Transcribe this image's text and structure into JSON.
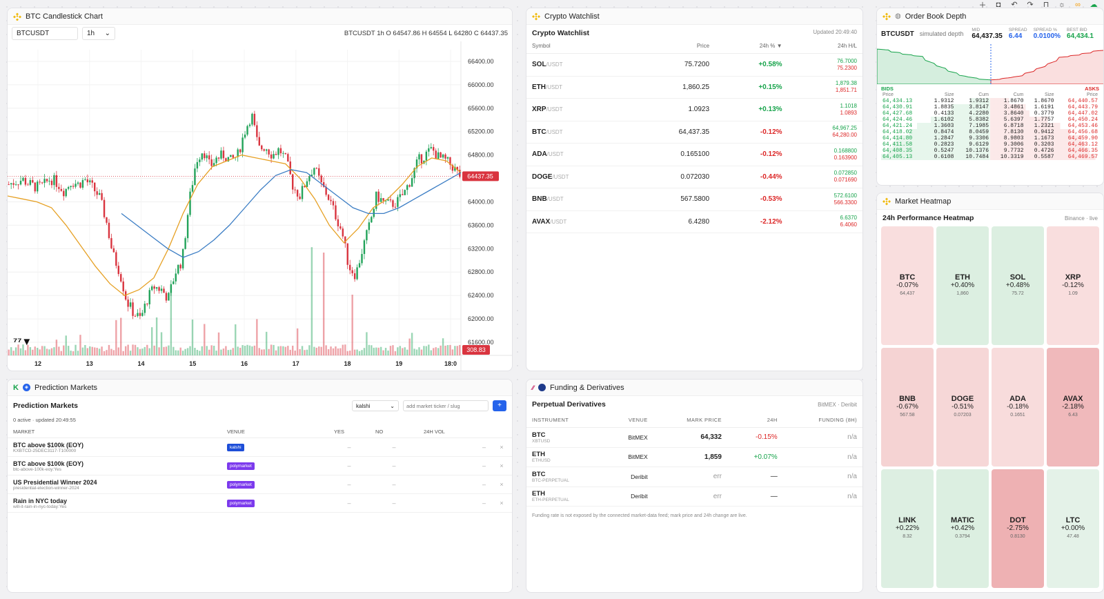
{
  "toolbar": {
    "icons": [
      "plus-icon",
      "camera-icon",
      "undo-icon",
      "redo-icon",
      "lock-icon",
      "sun-icon",
      "link-icon",
      "cloud-icon"
    ]
  },
  "candle": {
    "title": "BTC Candlestick Chart",
    "symbol": "BTCUSDT",
    "interval": "1h",
    "ohlc": "BTCUSDT 1h O 64547.86 H 64554 L 64280 C 64437.35",
    "last_price_label": "64437.35",
    "volume_label": "308.83",
    "chart_data": {
      "type": "candlestick",
      "y_ticks": [
        "66400.00",
        "66000.00",
        "65600.00",
        "65200.00",
        "64800.00",
        "64400.00",
        "64000.00",
        "63600.00",
        "63200.00",
        "62800.00",
        "62400.00",
        "62000.00",
        "61600.00"
      ],
      "ylim": [
        61600,
        66600
      ],
      "x_ticks": [
        "12",
        "13",
        "14",
        "15",
        "16",
        "17",
        "18",
        "19",
        "18:0"
      ],
      "last_price": 64437.35,
      "path_points": [
        64300,
        64350,
        64380,
        64300,
        64250,
        64280,
        64400,
        64320,
        64180,
        64350,
        64300,
        64380,
        64250,
        64100,
        63700,
        63100,
        62800,
        62300,
        62100,
        62000,
        62350,
        62550,
        62500,
        62350,
        62800,
        63000,
        64000,
        64700,
        64900,
        64600,
        64750,
        64800,
        64700,
        64800,
        65200,
        65500,
        64900,
        64950,
        64800,
        64900,
        64700,
        64250,
        64100,
        64400,
        64600,
        64300,
        64100,
        63800,
        63500,
        62900,
        62750,
        63200,
        63600,
        64100,
        64000,
        63950,
        64000,
        64150,
        64400,
        64700,
        64800,
        64900,
        64750,
        64700,
        64600,
        64450
      ],
      "ma_fast": [
        64100,
        64050,
        64000,
        63900,
        63600,
        63250,
        62900,
        62600,
        62400,
        62500,
        62700,
        63200,
        63800,
        64300,
        64600,
        64700,
        64800,
        64750,
        64700,
        64650,
        64400,
        64050,
        63600,
        63300,
        63550,
        63900,
        64050,
        64300,
        64600,
        64750,
        64700,
        64500
      ],
      "ma_slow": [
        63800,
        63600,
        63400,
        63200,
        63050,
        63150,
        63350,
        63600,
        63900,
        64200,
        64450,
        64550,
        64500,
        64300,
        64100,
        63900,
        63800,
        63800,
        63900,
        64050,
        64200,
        64350,
        64500
      ],
      "volume_spikes": [
        1.0,
        1.2,
        1.5,
        2.5,
        2.2,
        3.0,
        1.8,
        2.0,
        1.4,
        5.0,
        1.6,
        1.2,
        1.0,
        1.4
      ]
    }
  },
  "watch": {
    "title": "Crypto Watchlist",
    "heading": "Crypto Watchlist",
    "updated": "Updated 20:49:40",
    "cols": [
      "Symbol",
      "Price",
      "24h % ▼",
      "24h H/L"
    ],
    "rows": [
      {
        "base": "SOL",
        "quote": "/USDT",
        "price": "75.7200",
        "chg": "+0.58%",
        "pos": true,
        "high": "76.7000",
        "low": "75.2300"
      },
      {
        "base": "ETH",
        "quote": "/USDT",
        "price": "1,860.25",
        "chg": "+0.15%",
        "pos": true,
        "high": "1,879.38",
        "low": "1,851.71"
      },
      {
        "base": "XRP",
        "quote": "/USDT",
        "price": "1.0923",
        "chg": "+0.13%",
        "pos": true,
        "high": "1.1018",
        "low": "1.0893"
      },
      {
        "base": "BTC",
        "quote": "/USDT",
        "price": "64,437.35",
        "chg": "-0.12%",
        "pos": false,
        "high": "64,967.25",
        "low": "64,280.00"
      },
      {
        "base": "ADA",
        "quote": "/USDT",
        "price": "0.165100",
        "chg": "-0.12%",
        "pos": false,
        "high": "0.168800",
        "low": "0.163900"
      },
      {
        "base": "DOGE",
        "quote": "/USDT",
        "price": "0.072030",
        "chg": "-0.44%",
        "pos": false,
        "high": "0.072850",
        "low": "0.071690"
      },
      {
        "base": "BNB",
        "quote": "/USDT",
        "price": "567.5800",
        "chg": "-0.53%",
        "pos": false,
        "high": "572.6100",
        "low": "566.3300"
      },
      {
        "base": "AVAX",
        "quote": "/USDT",
        "price": "6.4280",
        "chg": "-2.12%",
        "pos": false,
        "high": "6.6370",
        "low": "6.4060"
      }
    ]
  },
  "book": {
    "title": "Order Book Depth",
    "symbol": "BTCUSDT",
    "sub": "simulated depth",
    "stats": [
      {
        "label": "MID",
        "value": "64,437.35",
        "color": "#111"
      },
      {
        "label": "SPREAD",
        "value": "6.44",
        "color": "#2563eb"
      },
      {
        "label": "SPREAD %",
        "value": "0.0100%",
        "color": "#2563eb"
      },
      {
        "label": "BEST BID",
        "value": "64,434.1",
        "color": "#16a34a"
      }
    ],
    "bids_label": "BIDS",
    "asks_label": "ASKS",
    "bid_cols": [
      "Price",
      "Size",
      "Cum"
    ],
    "ask_cols": [
      "Cum",
      "Size",
      "Price"
    ],
    "bids": [
      [
        "64,434.13",
        "1.9312",
        "1.9312"
      ],
      [
        "64,430.91",
        "1.8835",
        "3.8147"
      ],
      [
        "64,427.68",
        "0.4133",
        "4.2280"
      ],
      [
        "64,424.46",
        "1.6102",
        "5.8382"
      ],
      [
        "64,421.24",
        "1.3603",
        "7.1985"
      ],
      [
        "64,418.02",
        "0.8474",
        "8.0459"
      ],
      [
        "64,414.80",
        "1.2847",
        "9.3306"
      ],
      [
        "64,411.58",
        "0.2823",
        "9.6129"
      ],
      [
        "64,408.35",
        "0.5247",
        "10.1376"
      ],
      [
        "64,405.13",
        "0.6108",
        "10.7484"
      ]
    ],
    "asks": [
      [
        "1.8670",
        "1.8670",
        "64,440.57"
      ],
      [
        "3.4861",
        "1.6191",
        "64,443.79"
      ],
      [
        "3.8640",
        "0.3779",
        "64,447.02"
      ],
      [
        "5.6397",
        "1.7757",
        "64,450.24"
      ],
      [
        "6.8718",
        "1.2321",
        "64,453.46"
      ],
      [
        "7.8130",
        "0.9412",
        "64,456.68"
      ],
      [
        "8.9803",
        "1.1673",
        "64,459.90"
      ],
      [
        "9.3006",
        "0.3203",
        "64,463.12"
      ],
      [
        "9.7732",
        "0.4726",
        "64,466.35"
      ],
      [
        "10.3319",
        "0.5587",
        "64,469.57"
      ]
    ]
  },
  "heat": {
    "title": "Market Heatmap",
    "heading": "24h Performance Heatmap",
    "source": "Binance · live",
    "tiles": [
      {
        "name": "BTC",
        "chg": "-0.07%",
        "price": "64,437",
        "bg": "#f9dede"
      },
      {
        "name": "ETH",
        "chg": "+0.40%",
        "price": "1,860",
        "bg": "#dcefe1"
      },
      {
        "name": "SOL",
        "chg": "+0.48%",
        "price": "75.72",
        "bg": "#dcefe1"
      },
      {
        "name": "XRP",
        "chg": "-0.12%",
        "price": "1.09",
        "bg": "#f9dede"
      },
      {
        "name": "BNB",
        "chg": "-0.67%",
        "price": "567.58",
        "bg": "#f5d3d3"
      },
      {
        "name": "DOGE",
        "chg": "-0.51%",
        "price": "0.07203",
        "bg": "#f6d7d7"
      },
      {
        "name": "ADA",
        "chg": "-0.18%",
        "price": "0.1651",
        "bg": "#f8dcdc"
      },
      {
        "name": "AVAX",
        "chg": "-2.18%",
        "price": "6.43",
        "bg": "#f0b9bb"
      },
      {
        "name": "LINK",
        "chg": "+0.22%",
        "price": "8.32",
        "bg": "#ddefe2"
      },
      {
        "name": "MATIC",
        "chg": "+0.42%",
        "price": "0.3794",
        "bg": "#dcefe1"
      },
      {
        "name": "DOT",
        "chg": "-2.75%",
        "price": "0.8130",
        "bg": "#eeb1b3"
      },
      {
        "name": "LTC",
        "chg": "+0.00%",
        "price": "47.48",
        "bg": "#e4f2e8"
      }
    ]
  },
  "pred": {
    "title": "Prediction Markets",
    "heading": "Prediction Markets",
    "venue_select": "kalshi",
    "input_placeholder": "add market ticker / slug",
    "add_label": "+",
    "status": "0 active · updated 20:49:55",
    "cols": [
      "MARKET",
      "VENUE",
      "YES",
      "NO",
      "24H VOL"
    ],
    "rows": [
      {
        "name": "BTC above $100k (EOY)",
        "slug": "KXBTCD-25DEC3117-T100000",
        "venue": "kalshi",
        "vcolor": "#1d4ed8",
        "yes": "–",
        "no": "–",
        "vol": "–"
      },
      {
        "name": "BTC above $100k (EOY)",
        "slug": "btc-above-100k-eoy:Yes",
        "venue": "polymarket",
        "vcolor": "#7c3aed",
        "yes": "–",
        "no": "–",
        "vol": "–"
      },
      {
        "name": "US Presidential Winner 2024",
        "slug": "presidential-election-winner-2024",
        "venue": "polymarket",
        "vcolor": "#7c3aed",
        "yes": "–",
        "no": "–",
        "vol": "–"
      },
      {
        "name": "Rain in NYC today",
        "slug": "will-it-rain-in-nyc-today:Yes",
        "venue": "polymarket",
        "vcolor": "#7c3aed",
        "yes": "–",
        "no": "–",
        "vol": "–"
      }
    ],
    "remove_label": "×"
  },
  "fund": {
    "title": "Funding & Derivatives",
    "heading": "Perpetual Derivatives",
    "source": "BitMEX · Deribit",
    "cols": [
      "INSTRUMENT",
      "VENUE",
      "MARK PRICE",
      "24H",
      "FUNDING (8H)"
    ],
    "rows": [
      {
        "name": "BTC",
        "sub": "XBTUSD",
        "venue": "BitMEX",
        "mark": "64,332",
        "chg": "-0.15%",
        "cls": "neg",
        "fund": "n/a"
      },
      {
        "name": "ETH",
        "sub": "ETHUSD",
        "venue": "BitMEX",
        "mark": "1,859",
        "chg": "+0.07%",
        "cls": "pos",
        "fund": "n/a"
      },
      {
        "name": "BTC",
        "sub": "BTC-PERPETUAL",
        "venue": "Deribit",
        "mark": "err",
        "chg": "—",
        "cls": "",
        "fund": "n/a"
      },
      {
        "name": "ETH",
        "sub": "ETH-PERPETUAL",
        "venue": "Deribit",
        "mark": "err",
        "chg": "—",
        "cls": "",
        "fund": "n/a"
      }
    ],
    "note": "Funding rate is not exposed by the connected market-data feed; mark price and 24h change are live."
  }
}
